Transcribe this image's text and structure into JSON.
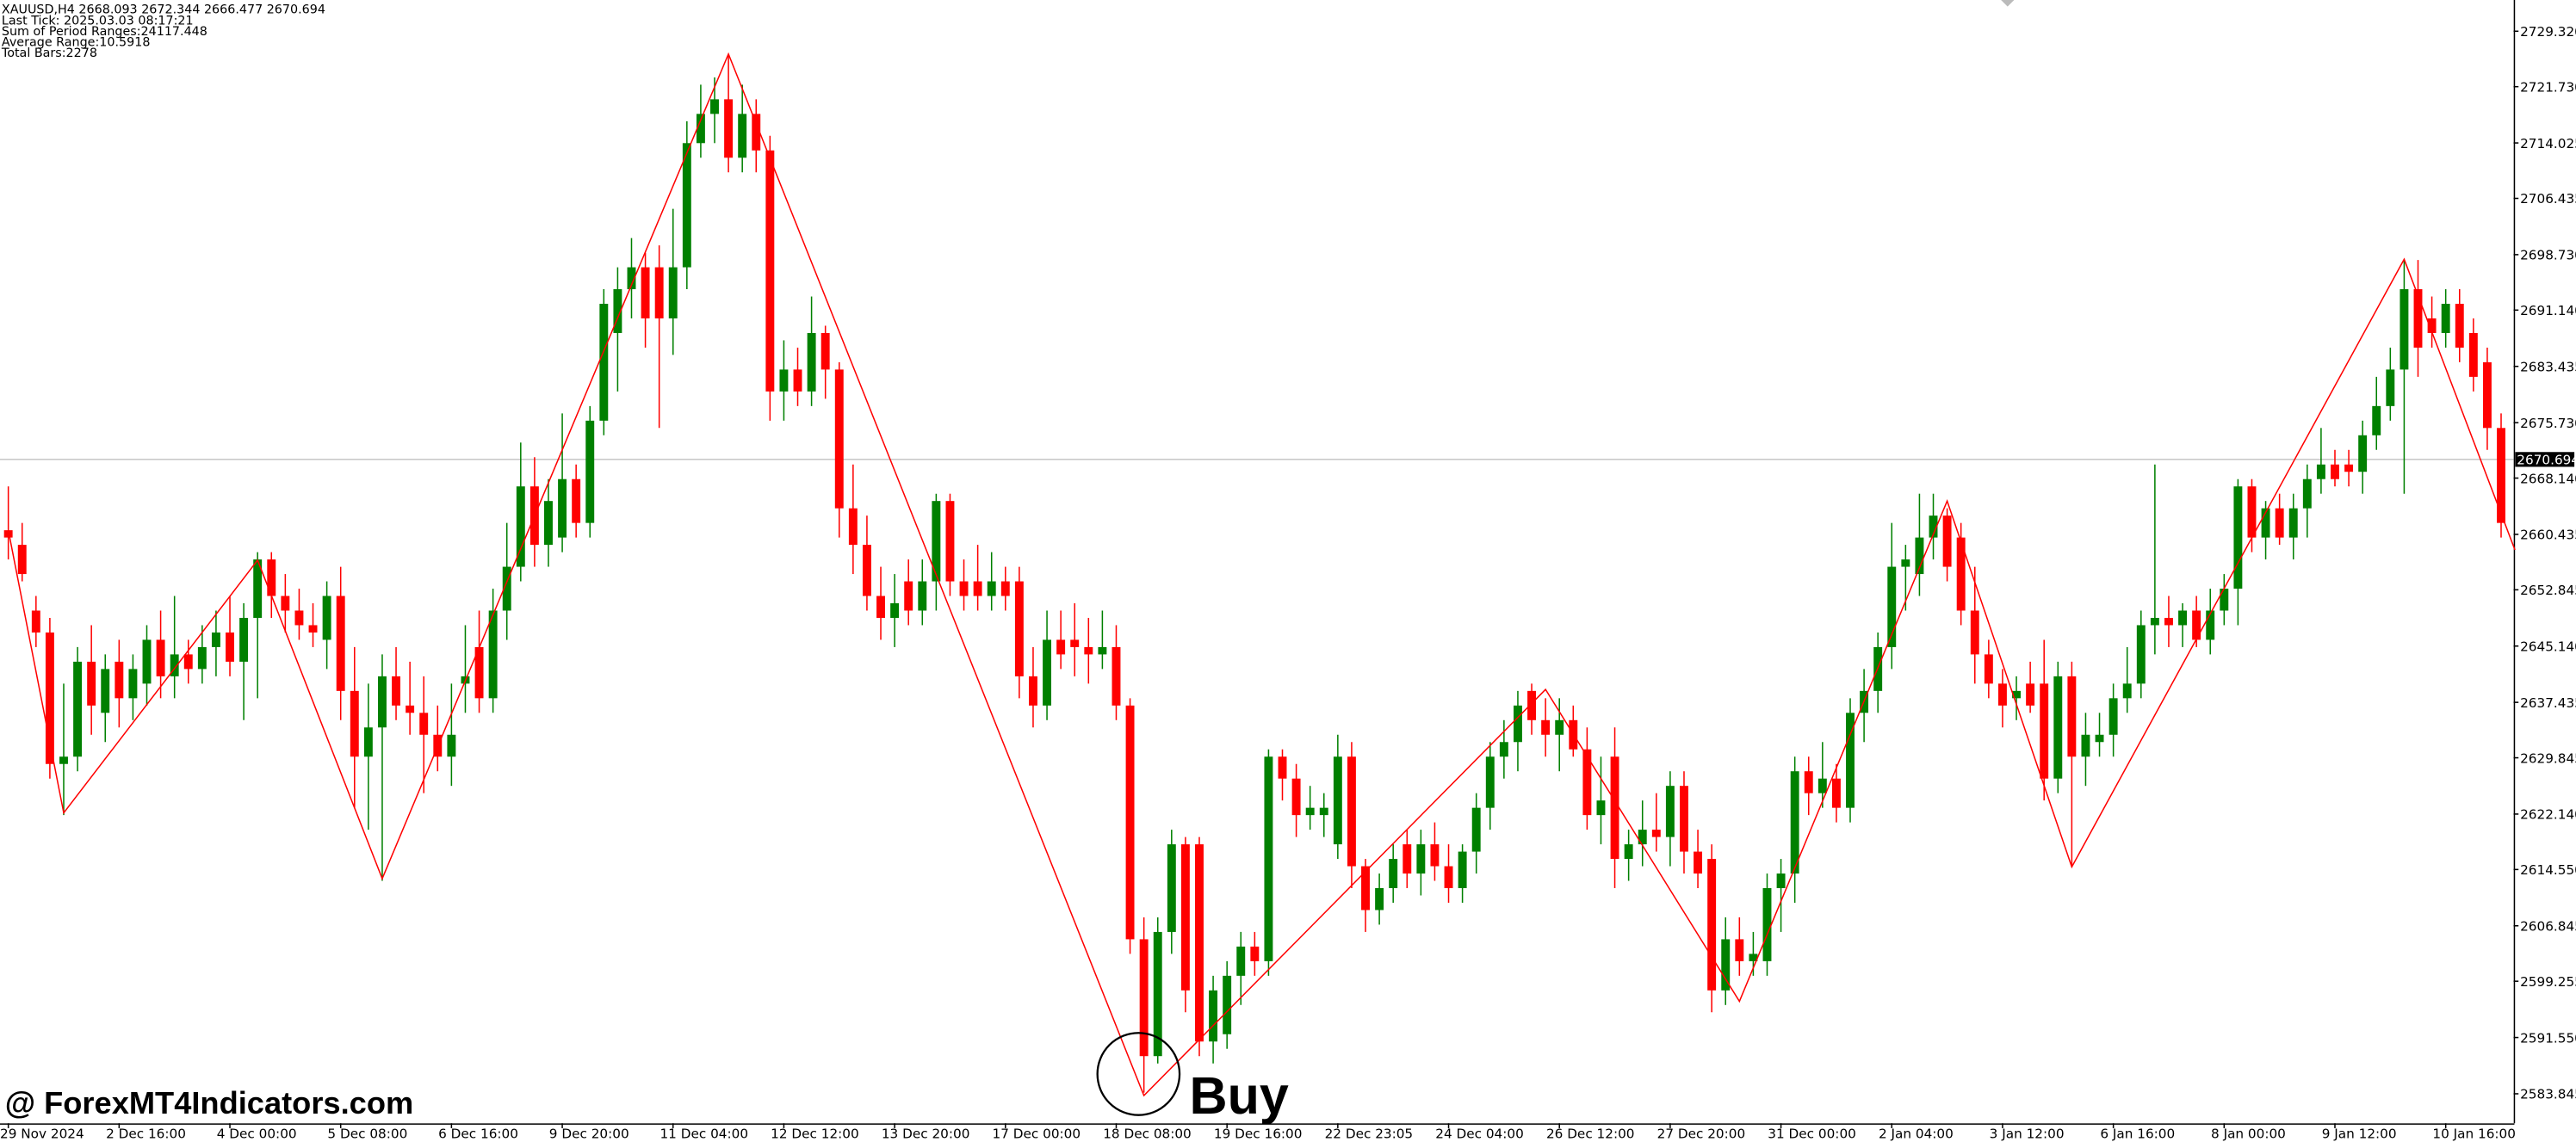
{
  "chart_data": {
    "type": "candlestick",
    "title": "XAUUSD,H4  2668.093 2672.344 2666.477 2670.694",
    "annotations": [
      "Last Tick: 2025.03.03 08:17:21",
      "Sum of Period Ranges:24117.448",
      "Average Range:10.5918",
      "Total Bars:2278"
    ],
    "watermark": "@ ForexMT4Indicators.com",
    "signal_label": "Buy",
    "up_color": "#008000",
    "down_color": "#ff0000",
    "ohlc": [
      [
        2661,
        2667,
        2657,
        2660
      ],
      [
        2659,
        2662,
        2654,
        2655
      ],
      [
        2650,
        2652,
        2645,
        2647
      ],
      [
        2647,
        2649,
        2627,
        2629
      ],
      [
        2629,
        2640,
        2622,
        2630
      ],
      [
        2630,
        2645,
        2628,
        2643
      ],
      [
        2643,
        2648,
        2633,
        2637
      ],
      [
        2636,
        2644,
        2632,
        2642
      ],
      [
        2643,
        2646,
        2634,
        2638
      ],
      [
        2638,
        2644,
        2635,
        2642
      ],
      [
        2640,
        2648,
        2637,
        2646
      ],
      [
        2646,
        2650,
        2638,
        2641
      ],
      [
        2641,
        2652,
        2638,
        2644
      ],
      [
        2644,
        2646,
        2640,
        2642
      ],
      [
        2642,
        2648,
        2640,
        2645
      ],
      [
        2645,
        2650,
        2641,
        2647
      ],
      [
        2647,
        2652,
        2641,
        2643
      ],
      [
        2643,
        2651,
        2635,
        2649
      ],
      [
        2649,
        2658,
        2638,
        2657
      ],
      [
        2657,
        2658,
        2649,
        2652
      ],
      [
        2652,
        2655,
        2647,
        2650
      ],
      [
        2650,
        2653,
        2646,
        2648
      ],
      [
        2648,
        2651,
        2645,
        2647
      ],
      [
        2646,
        2654,
        2642,
        2652
      ],
      [
        2652,
        2656,
        2635,
        2639
      ],
      [
        2639,
        2645,
        2623,
        2630
      ],
      [
        2630,
        2640,
        2620,
        2634
      ],
      [
        2634,
        2644,
        2613,
        2641
      ],
      [
        2641,
        2645,
        2635,
        2637
      ],
      [
        2637,
        2643,
        2633,
        2636
      ],
      [
        2636,
        2641,
        2625,
        2633
      ],
      [
        2633,
        2637,
        2628,
        2630
      ],
      [
        2630,
        2640,
        2626,
        2633
      ],
      [
        2640,
        2648,
        2636,
        2641
      ],
      [
        2645,
        2650,
        2636,
        2638
      ],
      [
        2638,
        2653,
        2636,
        2650
      ],
      [
        2650,
        2662,
        2646,
        2656
      ],
      [
        2656,
        2673,
        2654,
        2667
      ],
      [
        2667,
        2671,
        2656,
        2659
      ],
      [
        2659,
        2668,
        2656,
        2665
      ],
      [
        2660,
        2677,
        2658,
        2668
      ],
      [
        2668,
        2670,
        2660,
        2662
      ],
      [
        2662,
        2678,
        2660,
        2676
      ],
      [
        2676,
        2694,
        2674,
        2692
      ],
      [
        2688,
        2697,
        2680,
        2694
      ],
      [
        2694,
        2701,
        2690,
        2697
      ],
      [
        2697,
        2699,
        2686,
        2690
      ],
      [
        2697,
        2700,
        2675,
        2690
      ],
      [
        2690,
        2705,
        2685,
        2697
      ],
      [
        2697,
        2717,
        2694,
        2714
      ],
      [
        2714,
        2722,
        2712,
        2718
      ],
      [
        2718,
        2723,
        2714,
        2720
      ],
      [
        2720,
        2726,
        2710,
        2712
      ],
      [
        2712,
        2722,
        2710,
        2718
      ],
      [
        2718,
        2720,
        2710,
        2713
      ],
      [
        2713,
        2715,
        2676,
        2680
      ],
      [
        2680,
        2687,
        2676,
        2683
      ],
      [
        2683,
        2686,
        2678,
        2680
      ],
      [
        2680,
        2693,
        2678,
        2688
      ],
      [
        2688,
        2689,
        2679,
        2683
      ],
      [
        2683,
        2684,
        2660,
        2664
      ],
      [
        2664,
        2670,
        2655,
        2659
      ],
      [
        2659,
        2663,
        2650,
        2652
      ],
      [
        2652,
        2656,
        2646,
        2649
      ],
      [
        2649,
        2655,
        2645,
        2651
      ],
      [
        2654,
        2657,
        2648,
        2650
      ],
      [
        2650,
        2657,
        2648,
        2654
      ],
      [
        2654,
        2666,
        2650,
        2665
      ],
      [
        2665,
        2666,
        2652,
        2654
      ],
      [
        2654,
        2657,
        2650,
        2652
      ],
      [
        2654,
        2659,
        2650,
        2652
      ],
      [
        2652,
        2658,
        2650,
        2654
      ],
      [
        2654,
        2656,
        2650,
        2652
      ],
      [
        2654,
        2656,
        2638,
        2641
      ],
      [
        2641,
        2645,
        2634,
        2637
      ],
      [
        2637,
        2650,
        2635,
        2646
      ],
      [
        2646,
        2650,
        2642,
        2644
      ],
      [
        2646,
        2651,
        2641,
        2645
      ],
      [
        2645,
        2649,
        2640,
        2644
      ],
      [
        2644,
        2650,
        2642,
        2645
      ],
      [
        2645,
        2648,
        2635,
        2637
      ],
      [
        2637,
        2638,
        2603,
        2605
      ],
      [
        2605,
        2608,
        2584,
        2589
      ],
      [
        2589,
        2608,
        2588,
        2606
      ],
      [
        2606,
        2620,
        2603,
        2618
      ],
      [
        2618,
        2619,
        2595,
        2598
      ],
      [
        2618,
        2619,
        2589,
        2591
      ],
      [
        2591,
        2600,
        2588,
        2598
      ],
      [
        2592,
        2602,
        2590,
        2600
      ],
      [
        2600,
        2606,
        2596,
        2604
      ],
      [
        2604,
        2606,
        2600,
        2602
      ],
      [
        2602,
        2631,
        2600,
        2630
      ],
      [
        2630,
        2631,
        2624,
        2627
      ],
      [
        2627,
        2629,
        2619,
        2622
      ],
      [
        2622,
        2626,
        2620,
        2623
      ],
      [
        2622,
        2625,
        2619,
        2623
      ],
      [
        2618,
        2633,
        2616,
        2630
      ],
      [
        2630,
        2632,
        2612,
        2615
      ],
      [
        2615,
        2616,
        2606,
        2609
      ],
      [
        2609,
        2614,
        2607,
        2612
      ],
      [
        2612,
        2618,
        2610,
        2616
      ],
      [
        2618,
        2620,
        2612,
        2614
      ],
      [
        2614,
        2620,
        2611,
        2618
      ],
      [
        2618,
        2621,
        2613,
        2615
      ],
      [
        2615,
        2618,
        2610,
        2612
      ],
      [
        2612,
        2618,
        2610,
        2617
      ],
      [
        2617,
        2625,
        2614,
        2623
      ],
      [
        2623,
        2632,
        2620,
        2630
      ],
      [
        2630,
        2635,
        2627,
        2632
      ],
      [
        2632,
        2639,
        2628,
        2637
      ],
      [
        2639,
        2640,
        2633,
        2635
      ],
      [
        2635,
        2638,
        2630,
        2633
      ],
      [
        2633,
        2638,
        2628,
        2635
      ],
      [
        2635,
        2637,
        2630,
        2631
      ],
      [
        2631,
        2634,
        2620,
        2622
      ],
      [
        2622,
        2630,
        2618,
        2624
      ],
      [
        2630,
        2634,
        2612,
        2616
      ],
      [
        2616,
        2620,
        2613,
        2618
      ],
      [
        2618,
        2624,
        2615,
        2620
      ],
      [
        2620,
        2625,
        2617,
        2619
      ],
      [
        2619,
        2628,
        2615,
        2626
      ],
      [
        2626,
        2628,
        2614,
        2617
      ],
      [
        2617,
        2620,
        2612,
        2614
      ],
      [
        2616,
        2618,
        2595,
        2598
      ],
      [
        2598,
        2608,
        2596,
        2605
      ],
      [
        2605,
        2608,
        2600,
        2602
      ],
      [
        2602,
        2606,
        2600,
        2603
      ],
      [
        2602,
        2614,
        2600,
        2612
      ],
      [
        2612,
        2616,
        2606,
        2614
      ],
      [
        2614,
        2630,
        2610,
        2628
      ],
      [
        2628,
        2630,
        2622,
        2625
      ],
      [
        2625,
        2632,
        2623,
        2627
      ],
      [
        2627,
        2629,
        2621,
        2623
      ],
      [
        2623,
        2638,
        2621,
        2636
      ],
      [
        2636,
        2642,
        2632,
        2639
      ],
      [
        2639,
        2647,
        2636,
        2645
      ],
      [
        2645,
        2662,
        2642,
        2656
      ],
      [
        2656,
        2659,
        2650,
        2657
      ],
      [
        2655,
        2666,
        2652,
        2660
      ],
      [
        2660,
        2666,
        2657,
        2663
      ],
      [
        2663,
        2664,
        2654,
        2656
      ],
      [
        2660,
        2662,
        2648,
        2650
      ],
      [
        2650,
        2656,
        2640,
        2644
      ],
      [
        2644,
        2646,
        2638,
        2640
      ],
      [
        2640,
        2642,
        2634,
        2637
      ],
      [
        2638,
        2641,
        2635,
        2639
      ],
      [
        2640,
        2643,
        2636,
        2637
      ],
      [
        2640,
        2646,
        2624,
        2627
      ],
      [
        2627,
        2643,
        2625,
        2641
      ],
      [
        2641,
        2643,
        2615,
        2630
      ],
      [
        2630,
        2636,
        2626,
        2633
      ],
      [
        2632,
        2636,
        2630,
        2633
      ],
      [
        2633,
        2640,
        2630,
        2638
      ],
      [
        2638,
        2645,
        2636,
        2640
      ],
      [
        2640,
        2650,
        2638,
        2648
      ],
      [
        2648,
        2670,
        2644,
        2649
      ],
      [
        2649,
        2652,
        2645,
        2648
      ],
      [
        2648,
        2651,
        2645,
        2650
      ],
      [
        2650,
        2652,
        2645,
        2646
      ],
      [
        2646,
        2653,
        2644,
        2650
      ],
      [
        2650,
        2655,
        2648,
        2653
      ],
      [
        2653,
        2668,
        2648,
        2667
      ],
      [
        2667,
        2668,
        2658,
        2660
      ],
      [
        2660,
        2665,
        2657,
        2664
      ],
      [
        2664,
        2666,
        2659,
        2660
      ],
      [
        2660,
        2666,
        2657,
        2664
      ],
      [
        2664,
        2670,
        2660,
        2668
      ],
      [
        2668,
        2675,
        2666,
        2670
      ],
      [
        2670,
        2672,
        2667,
        2668
      ],
      [
        2670,
        2672,
        2667,
        2669
      ],
      [
        2669,
        2676,
        2666,
        2674
      ],
      [
        2674,
        2682,
        2672,
        2678
      ],
      [
        2678,
        2686,
        2676,
        2683
      ],
      [
        2683,
        2698,
        2666,
        2694
      ],
      [
        2694,
        2698,
        2682,
        2686
      ],
      [
        2690,
        2693,
        2686,
        2688
      ],
      [
        2688,
        2694,
        2686,
        2692
      ],
      [
        2692,
        2694,
        2684,
        2686
      ],
      [
        2688,
        2690,
        2680,
        2682
      ],
      [
        2684,
        2686,
        2672,
        2675
      ],
      [
        2675,
        2677,
        2660,
        2662
      ]
    ],
    "zigzag": {
      "color": "#ff0000",
      "x": [
        0,
        4,
        18,
        27,
        52,
        82,
        111,
        125,
        140,
        149,
        173,
        181
      ],
      "values": [
        2661,
        2622.3,
        2656.9,
        2613.3,
        2726.2,
        2583.6,
        2639.2,
        2596.5,
        2665.0,
        2614.9,
        2698.1,
        2658.3
      ]
    },
    "current_price": 2670.694,
    "xlim": [
      -0.6,
      180.9
    ],
    "ylim": [
      2579.81,
      2733.59
    ],
    "yticks": [
      {
        "value": 2729.32,
        "label": "2729.320"
      },
      {
        "value": 2721.73,
        "label": "2721.730"
      },
      {
        "value": 2714.025,
        "label": "2714.025"
      },
      {
        "value": 2706.435,
        "label": "2706.435"
      },
      {
        "value": 2698.73,
        "label": "2698.730"
      },
      {
        "value": 2691.14,
        "label": "2691.140"
      },
      {
        "value": 2683.435,
        "label": "2683.435"
      },
      {
        "value": 2675.73,
        "label": "2675.730"
      },
      {
        "value": 2668.14,
        "label": "2668.140"
      },
      {
        "value": 2660.435,
        "label": "2660.435"
      },
      {
        "value": 2652.845,
        "label": "2652.845"
      },
      {
        "value": 2645.14,
        "label": "2645.140"
      },
      {
        "value": 2637.435,
        "label": "2637.435"
      },
      {
        "value": 2629.845,
        "label": "2629.845"
      },
      {
        "value": 2622.14,
        "label": "2622.140"
      },
      {
        "value": 2614.55,
        "label": "2614.550"
      },
      {
        "value": 2606.845,
        "label": "2606.845"
      },
      {
        "value": 2599.255,
        "label": "2599.255"
      },
      {
        "value": 2591.55,
        "label": "2591.550"
      },
      {
        "value": 2583.845,
        "label": "2583.845"
      }
    ],
    "xticks": [
      {
        "value": 0,
        "label": "29 Nov 2024"
      },
      {
        "value": 8,
        "label": "2 Dec 16:00"
      },
      {
        "value": 16,
        "label": "4 Dec 00:00"
      },
      {
        "value": 24,
        "label": "5 Dec 08:00"
      },
      {
        "value": 32,
        "label": "6 Dec 16:00"
      },
      {
        "value": 40,
        "label": "9 Dec 20:00"
      },
      {
        "value": 48,
        "label": "11 Dec 04:00"
      },
      {
        "value": 56,
        "label": "12 Dec 12:00"
      },
      {
        "value": 64,
        "label": "13 Dec 20:00"
      },
      {
        "value": 72,
        "label": "17 Dec 00:00"
      },
      {
        "value": 80,
        "label": "18 Dec 08:00"
      },
      {
        "value": 88,
        "label": "19 Dec 16:00"
      },
      {
        "value": 96,
        "label": "22 Dec 23:05"
      },
      {
        "value": 104,
        "label": "24 Dec 04:00"
      },
      {
        "value": 112,
        "label": "26 Dec 12:00"
      },
      {
        "value": 120,
        "label": "27 Dec 20:00"
      },
      {
        "value": 128,
        "label": "31 Dec 00:00"
      },
      {
        "value": 136,
        "label": "2 Jan 04:00"
      },
      {
        "value": 144,
        "label": "3 Jan 12:00"
      },
      {
        "value": 152,
        "label": "6 Jan 16:00"
      },
      {
        "value": 160,
        "label": "8 Jan 00:00"
      },
      {
        "value": 168,
        "label": "9 Jan 12:00"
      },
      {
        "value": 176,
        "label": "10 Jan 16:00"
      }
    ]
  }
}
